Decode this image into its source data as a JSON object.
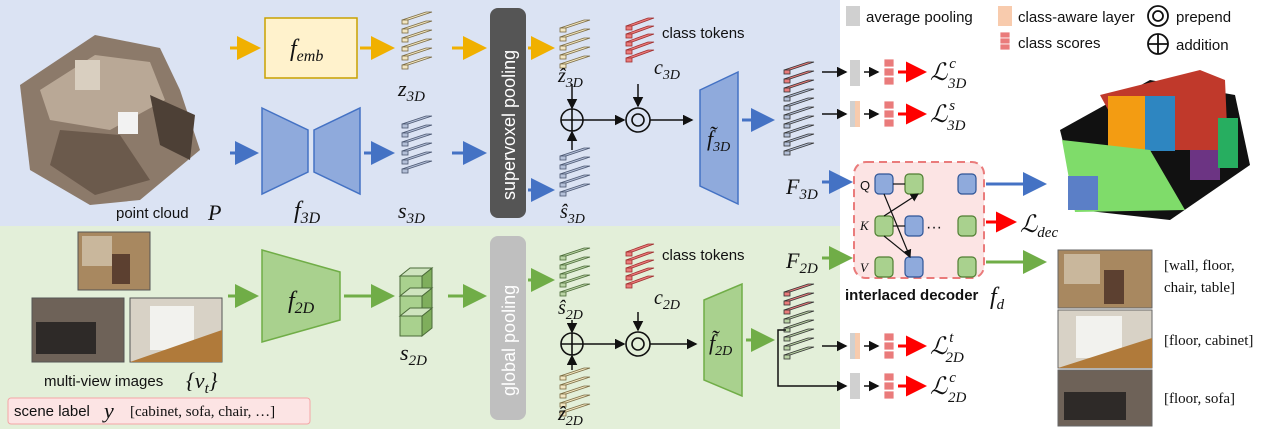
{
  "legend": {
    "avg_pool": "average pooling",
    "class_aware": "class-aware layer",
    "class_scores": "class scores",
    "prepend": "prepend",
    "addition": "addition"
  },
  "top": {
    "input_label": "point cloud",
    "input_symbol": "P",
    "f_emb": "f",
    "f_emb_sub": "emb",
    "f3d": "f",
    "f3d_sub": "3D",
    "z3d": "z",
    "z3d_sub": "3D",
    "s3d": "s",
    "s3d_sub": "3D",
    "pool_label": "supervoxel pooling",
    "zhat3d": "ẑ",
    "zhat3d_sub": "3D",
    "shat3d": "ŝ",
    "shat3d_sub": "3D",
    "class_tokens": "class tokens",
    "c3d": "c",
    "c3d_sub": "3D",
    "ftilde3d": "f̃",
    "ftilde3d_sub": "3D",
    "F3d": "F",
    "F3d_sub": "3D",
    "loss_c3d": "ℒ",
    "loss_c3d_sub": "3D",
    "loss_c3d_sup": "c",
    "loss_s3d": "ℒ",
    "loss_s3d_sub": "3D",
    "loss_s3d_sup": "s"
  },
  "bottom": {
    "input_label": "multi-view images",
    "input_symbol": "{v",
    "input_symbol_sub": "t",
    "input_symbol_close": "}",
    "scene_label": "scene label",
    "scene_symbol": "y",
    "scene_values": "[cabinet, sofa, chair, …]",
    "f2d": "f",
    "f2d_sub": "2D",
    "s2d": "s",
    "s2d_sub": "2D",
    "pool_label": "global pooling",
    "shat2d": "ŝ",
    "shat2d_sub": "2D",
    "zhat2d": "ẑ",
    "zhat2d_sub": "2D",
    "class_tokens": "class tokens",
    "c2d": "c",
    "c2d_sub": "2D",
    "ftilde2d": "f̃",
    "ftilde2d_sub": "2D",
    "F2d": "F",
    "F2d_sub": "2D",
    "loss_t2d": "ℒ",
    "loss_t2d_sub": "2D",
    "loss_t2d_sup": "t",
    "loss_c2d": "ℒ",
    "loss_c2d_sub": "2D",
    "loss_c2d_sup": "c"
  },
  "decoder": {
    "label": "interlaced decoder",
    "symbol": "f",
    "symbol_sub": "d",
    "q": "Q",
    "k": "K",
    "v": "V",
    "dots": "···",
    "loss": "ℒ",
    "loss_sub": "dec"
  },
  "outputs": {
    "labels": [
      "[wall, floor,",
      "chair, table]",
      "[floor, cabinet]",
      "[floor, sofa]"
    ]
  },
  "colors": {
    "top_bg": "#dbe3f3",
    "bottom_bg": "#e3efd9",
    "blue": "#4472c4",
    "orange": "#f0b000",
    "green": "#70ad47",
    "red": "#ff0000",
    "femb_fill": "#fff2cc",
    "f3d_fill": "#8faadc",
    "f2d_fill": "#a9d18e",
    "pool_fill": "#555555",
    "gpool_fill": "#bfbfbf",
    "token_pink": "#f4a6a6"
  }
}
